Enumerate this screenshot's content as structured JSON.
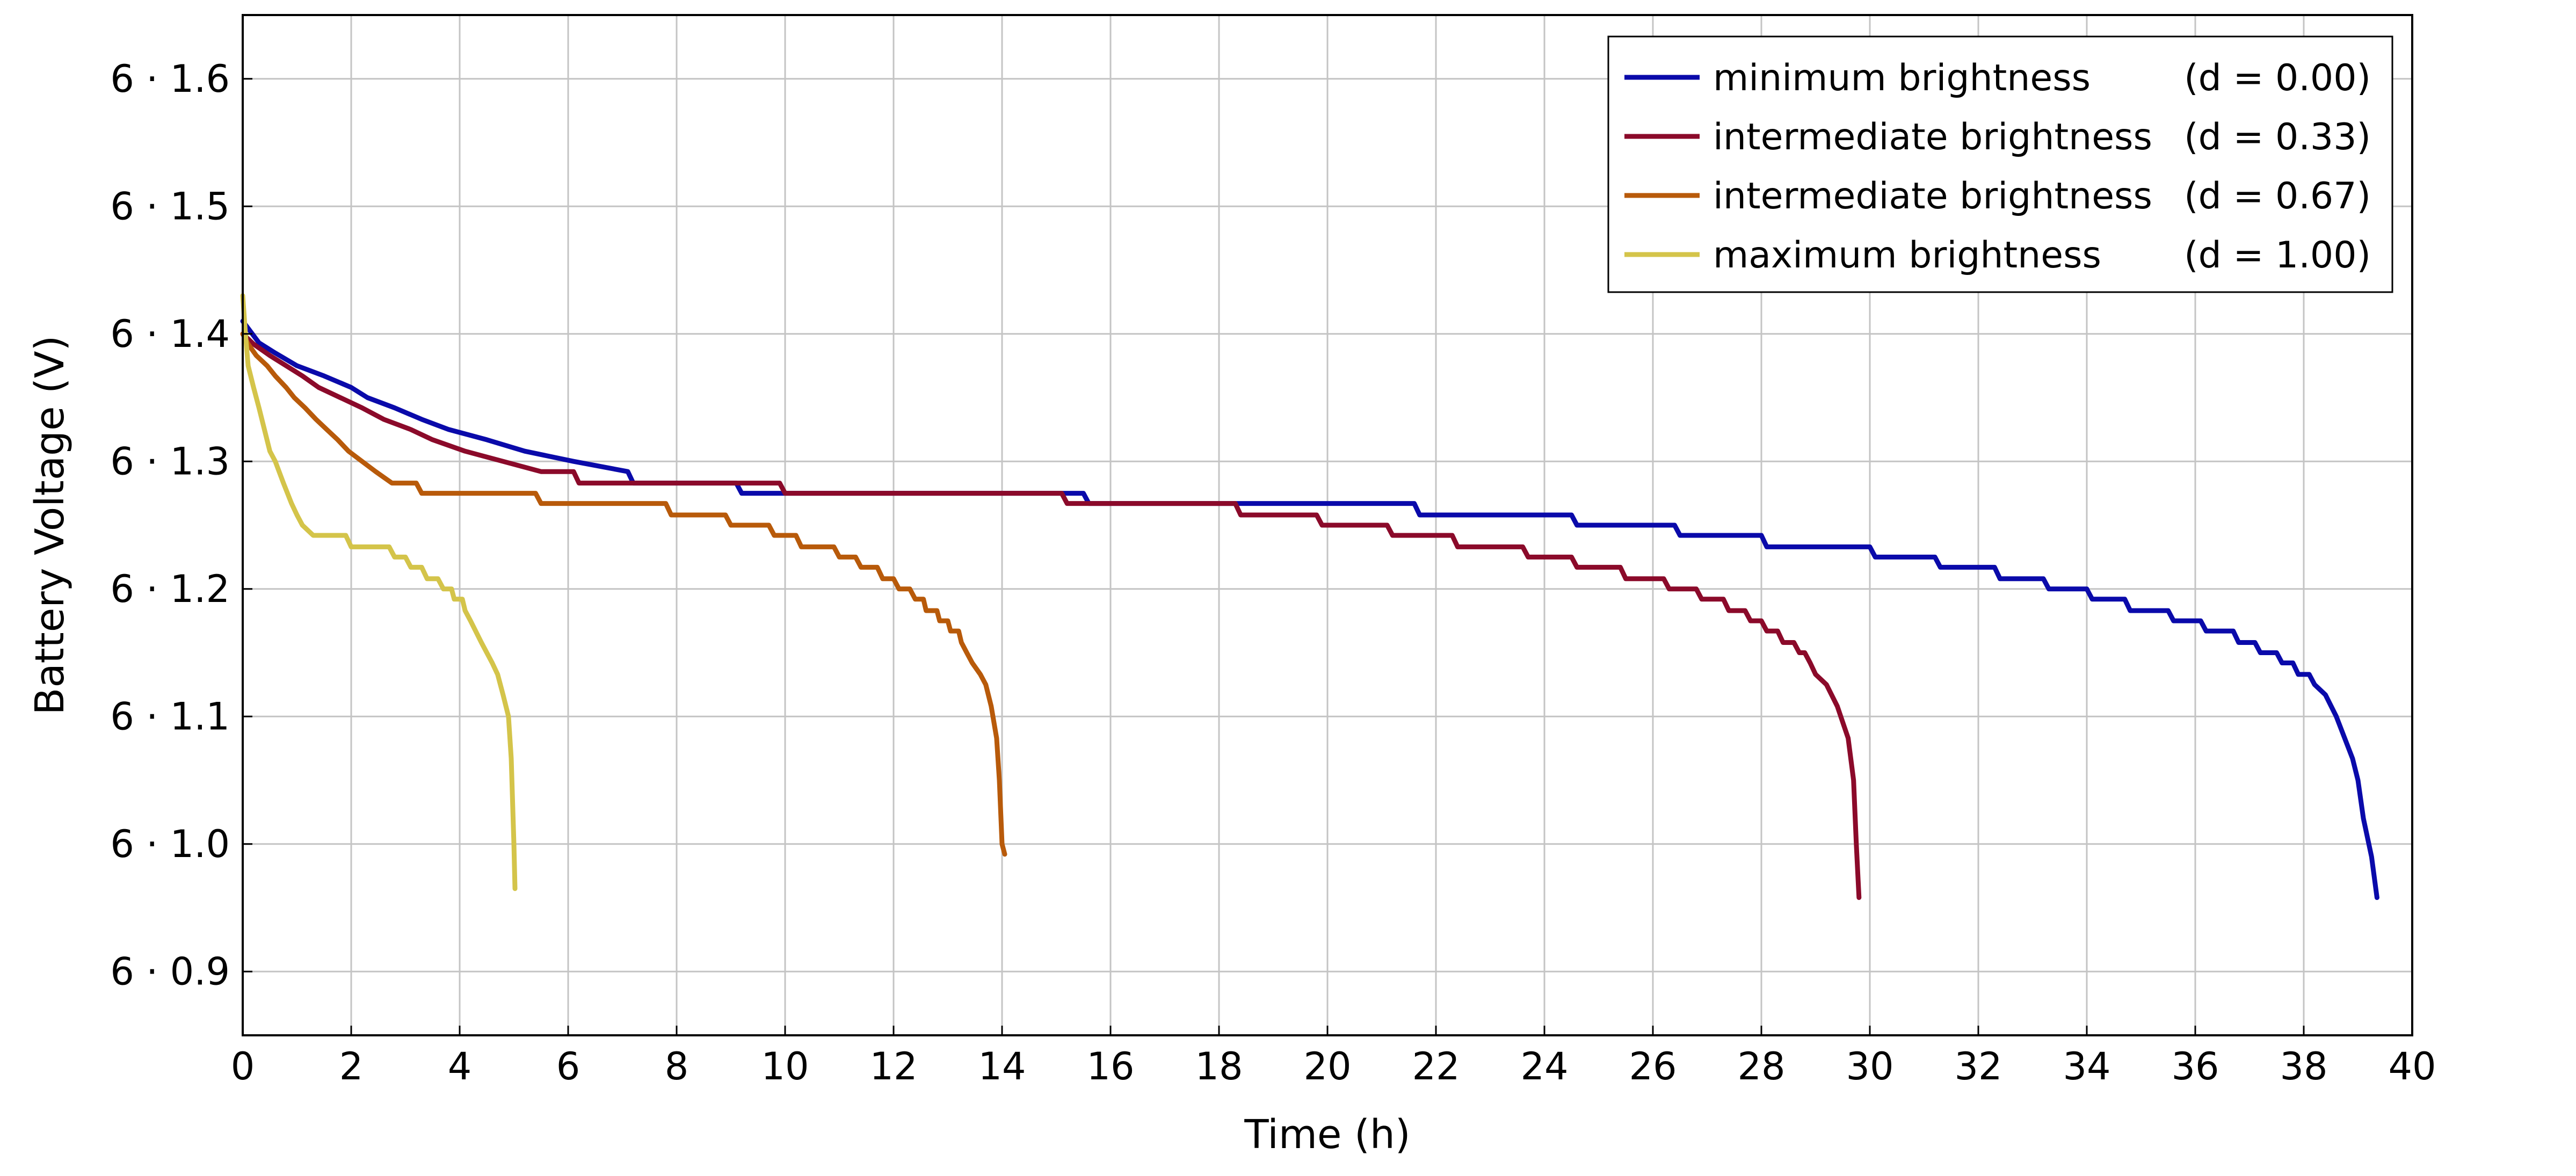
{
  "chart_data": {
    "type": "line",
    "xlabel": "Time (h)",
    "ylabel": "Battery Voltage (V)",
    "xlim": [
      0,
      40
    ],
    "ylim": [
      0.85,
      1.65
    ],
    "xticks": [
      0,
      2,
      4,
      6,
      8,
      10,
      12,
      14,
      16,
      18,
      20,
      22,
      24,
      26,
      28,
      30,
      32,
      34,
      36,
      38,
      40
    ],
    "yticks": [
      {
        "value": 0.9,
        "label": "6 · 0.9"
      },
      {
        "value": 1.0,
        "label": "6 · 1.0"
      },
      {
        "value": 1.1,
        "label": "6 · 1.1"
      },
      {
        "value": 1.2,
        "label": "6 · 1.2"
      },
      {
        "value": 1.3,
        "label": "6 · 1.3"
      },
      {
        "value": 1.4,
        "label": "6 · 1.4"
      },
      {
        "value": 1.5,
        "label": "6 · 1.5"
      },
      {
        "value": 1.6,
        "label": "6 · 1.6"
      }
    ],
    "grid": true,
    "legend_position": "top-right",
    "series": [
      {
        "name": "minimum brightness",
        "param": "(d = 0.00)",
        "color": "#0a0aaa",
        "points": [
          [
            0,
            1.41
          ],
          [
            0.3,
            1.393
          ],
          [
            0.6,
            1.385
          ],
          [
            1.0,
            1.375
          ],
          [
            1.5,
            1.367
          ],
          [
            2.0,
            1.358
          ],
          [
            2.3,
            1.35
          ],
          [
            2.8,
            1.342
          ],
          [
            3.3,
            1.333
          ],
          [
            3.8,
            1.325
          ],
          [
            4.5,
            1.317
          ],
          [
            5.2,
            1.308
          ],
          [
            6.1,
            1.3
          ],
          [
            7.1,
            1.292
          ],
          [
            7.2,
            1.283
          ],
          [
            9.1,
            1.283
          ],
          [
            9.2,
            1.275
          ],
          [
            15.5,
            1.275
          ],
          [
            15.6,
            1.267
          ],
          [
            21.6,
            1.267
          ],
          [
            21.7,
            1.258
          ],
          [
            24.5,
            1.258
          ],
          [
            24.6,
            1.25
          ],
          [
            26.4,
            1.25
          ],
          [
            26.5,
            1.242
          ],
          [
            28.0,
            1.242
          ],
          [
            28.1,
            1.233
          ],
          [
            30.0,
            1.233
          ],
          [
            30.1,
            1.225
          ],
          [
            31.2,
            1.225
          ],
          [
            31.3,
            1.217
          ],
          [
            32.3,
            1.217
          ],
          [
            32.4,
            1.208
          ],
          [
            33.2,
            1.208
          ],
          [
            33.3,
            1.2
          ],
          [
            34.0,
            1.2
          ],
          [
            34.1,
            1.192
          ],
          [
            34.7,
            1.192
          ],
          [
            34.8,
            1.183
          ],
          [
            35.5,
            1.183
          ],
          [
            35.6,
            1.175
          ],
          [
            36.1,
            1.175
          ],
          [
            36.2,
            1.167
          ],
          [
            36.7,
            1.167
          ],
          [
            36.8,
            1.158
          ],
          [
            37.1,
            1.158
          ],
          [
            37.2,
            1.15
          ],
          [
            37.5,
            1.15
          ],
          [
            37.6,
            1.142
          ],
          [
            37.8,
            1.142
          ],
          [
            37.9,
            1.133
          ],
          [
            38.1,
            1.133
          ],
          [
            38.2,
            1.125
          ],
          [
            38.4,
            1.117
          ],
          [
            38.6,
            1.1
          ],
          [
            38.9,
            1.067
          ],
          [
            39.0,
            1.05
          ],
          [
            39.1,
            1.02
          ],
          [
            39.25,
            0.99
          ],
          [
            39.35,
            0.958
          ]
        ]
      },
      {
        "name": "intermediate brightness",
        "param": "(d = 0.33)",
        "color": "#8b0a2a",
        "points": [
          [
            0,
            1.4
          ],
          [
            0.2,
            1.392
          ],
          [
            0.5,
            1.383
          ],
          [
            0.8,
            1.375
          ],
          [
            1.1,
            1.367
          ],
          [
            1.4,
            1.358
          ],
          [
            1.8,
            1.35
          ],
          [
            2.2,
            1.342
          ],
          [
            2.6,
            1.333
          ],
          [
            3.1,
            1.325
          ],
          [
            3.5,
            1.317
          ],
          [
            4.1,
            1.308
          ],
          [
            4.8,
            1.3
          ],
          [
            5.5,
            1.292
          ],
          [
            6.1,
            1.292
          ],
          [
            6.2,
            1.283
          ],
          [
            9.9,
            1.283
          ],
          [
            10.0,
            1.275
          ],
          [
            15.1,
            1.275
          ],
          [
            15.2,
            1.267
          ],
          [
            18.3,
            1.267
          ],
          [
            18.4,
            1.258
          ],
          [
            19.8,
            1.258
          ],
          [
            19.9,
            1.25
          ],
          [
            21.1,
            1.25
          ],
          [
            21.2,
            1.242
          ],
          [
            22.3,
            1.242
          ],
          [
            22.4,
            1.233
          ],
          [
            23.6,
            1.233
          ],
          [
            23.7,
            1.225
          ],
          [
            24.5,
            1.225
          ],
          [
            24.6,
            1.217
          ],
          [
            25.4,
            1.217
          ],
          [
            25.5,
            1.208
          ],
          [
            26.2,
            1.208
          ],
          [
            26.3,
            1.2
          ],
          [
            26.8,
            1.2
          ],
          [
            26.9,
            1.192
          ],
          [
            27.3,
            1.192
          ],
          [
            27.4,
            1.183
          ],
          [
            27.7,
            1.183
          ],
          [
            27.8,
            1.175
          ],
          [
            28.0,
            1.175
          ],
          [
            28.1,
            1.167
          ],
          [
            28.3,
            1.167
          ],
          [
            28.4,
            1.158
          ],
          [
            28.6,
            1.158
          ],
          [
            28.7,
            1.15
          ],
          [
            28.8,
            1.15
          ],
          [
            28.9,
            1.142
          ],
          [
            29.0,
            1.133
          ],
          [
            29.2,
            1.125
          ],
          [
            29.4,
            1.108
          ],
          [
            29.6,
            1.083
          ],
          [
            29.7,
            1.05
          ],
          [
            29.75,
            1.0
          ],
          [
            29.8,
            0.958
          ]
        ]
      },
      {
        "name": "intermediate brightness",
        "param": "(d = 0.67)",
        "color": "#b85a0a",
        "points": [
          [
            0,
            1.4
          ],
          [
            0.1,
            1.392
          ],
          [
            0.25,
            1.383
          ],
          [
            0.45,
            1.375
          ],
          [
            0.6,
            1.367
          ],
          [
            0.8,
            1.358
          ],
          [
            0.95,
            1.35
          ],
          [
            1.15,
            1.342
          ],
          [
            1.35,
            1.333
          ],
          [
            1.55,
            1.325
          ],
          [
            1.75,
            1.317
          ],
          [
            1.95,
            1.308
          ],
          [
            2.2,
            1.3
          ],
          [
            2.45,
            1.292
          ],
          [
            2.75,
            1.283
          ],
          [
            3.2,
            1.283
          ],
          [
            3.3,
            1.275
          ],
          [
            5.4,
            1.275
          ],
          [
            5.5,
            1.267
          ],
          [
            7.8,
            1.267
          ],
          [
            7.9,
            1.258
          ],
          [
            8.9,
            1.258
          ],
          [
            9.0,
            1.25
          ],
          [
            9.7,
            1.25
          ],
          [
            9.8,
            1.242
          ],
          [
            10.2,
            1.242
          ],
          [
            10.3,
            1.233
          ],
          [
            10.9,
            1.233
          ],
          [
            11.0,
            1.225
          ],
          [
            11.3,
            1.225
          ],
          [
            11.4,
            1.217
          ],
          [
            11.7,
            1.217
          ],
          [
            11.8,
            1.208
          ],
          [
            12.0,
            1.208
          ],
          [
            12.1,
            1.2
          ],
          [
            12.3,
            1.2
          ],
          [
            12.4,
            1.192
          ],
          [
            12.55,
            1.192
          ],
          [
            12.6,
            1.183
          ],
          [
            12.8,
            1.183
          ],
          [
            12.85,
            1.175
          ],
          [
            13.0,
            1.175
          ],
          [
            13.05,
            1.167
          ],
          [
            13.2,
            1.167
          ],
          [
            13.25,
            1.158
          ],
          [
            13.35,
            1.15
          ],
          [
            13.45,
            1.142
          ],
          [
            13.6,
            1.133
          ],
          [
            13.7,
            1.125
          ],
          [
            13.8,
            1.108
          ],
          [
            13.9,
            1.083
          ],
          [
            13.95,
            1.05
          ],
          [
            14.0,
            1.0
          ],
          [
            14.05,
            0.992
          ]
        ]
      },
      {
        "name": "maximum brightness",
        "param": "(d = 1.00)",
        "color": "#d4c44a",
        "points": [
          [
            0,
            1.43
          ],
          [
            0.05,
            1.4
          ],
          [
            0.1,
            1.375
          ],
          [
            0.2,
            1.358
          ],
          [
            0.3,
            1.342
          ],
          [
            0.4,
            1.325
          ],
          [
            0.5,
            1.308
          ],
          [
            0.6,
            1.3
          ],
          [
            0.75,
            1.283
          ],
          [
            0.9,
            1.267
          ],
          [
            1.0,
            1.258
          ],
          [
            1.1,
            1.25
          ],
          [
            1.3,
            1.242
          ],
          [
            1.9,
            1.242
          ],
          [
            2.0,
            1.233
          ],
          [
            2.7,
            1.233
          ],
          [
            2.8,
            1.225
          ],
          [
            3.0,
            1.225
          ],
          [
            3.1,
            1.217
          ],
          [
            3.3,
            1.217
          ],
          [
            3.4,
            1.208
          ],
          [
            3.6,
            1.208
          ],
          [
            3.7,
            1.2
          ],
          [
            3.85,
            1.2
          ],
          [
            3.9,
            1.192
          ],
          [
            4.05,
            1.192
          ],
          [
            4.1,
            1.183
          ],
          [
            4.2,
            1.175
          ],
          [
            4.4,
            1.158
          ],
          [
            4.6,
            1.142
          ],
          [
            4.7,
            1.133
          ],
          [
            4.8,
            1.117
          ],
          [
            4.9,
            1.1
          ],
          [
            4.95,
            1.067
          ],
          [
            5.0,
            1.0
          ],
          [
            5.02,
            0.965
          ]
        ]
      }
    ]
  }
}
